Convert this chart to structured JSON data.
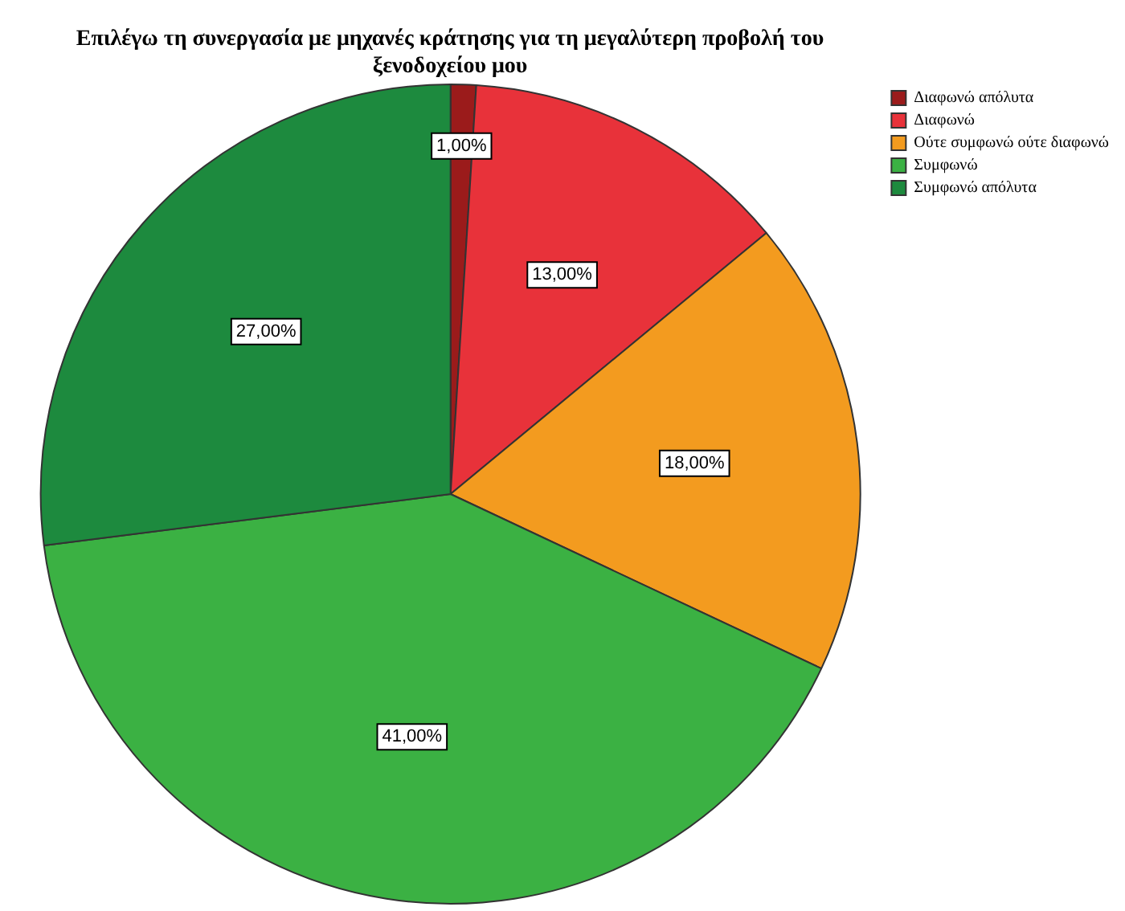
{
  "chart_data": {
    "type": "pie",
    "title": "Επιλέγω τη συνεργασία με μηχανές κράτησης για τη μεγαλύτερη προβολή του ξενοδοχείου μου",
    "categories": [
      "Διαφωνώ απόλυτα",
      "Διαφωνώ",
      "Ούτε συμφωνώ ούτε διαφωνώ",
      "Συμφωνώ",
      "Συμφωνώ απόλυτα"
    ],
    "values": [
      1,
      13,
      18,
      41,
      27
    ],
    "value_labels": [
      "1,00%",
      "13,00%",
      "18,00%",
      "41,00%",
      "27,00%"
    ],
    "colors": [
      "#9b1b1b",
      "#e8323a",
      "#f39b1f",
      "#3bb143",
      "#1d8a3e"
    ],
    "legend": "top right"
  }
}
